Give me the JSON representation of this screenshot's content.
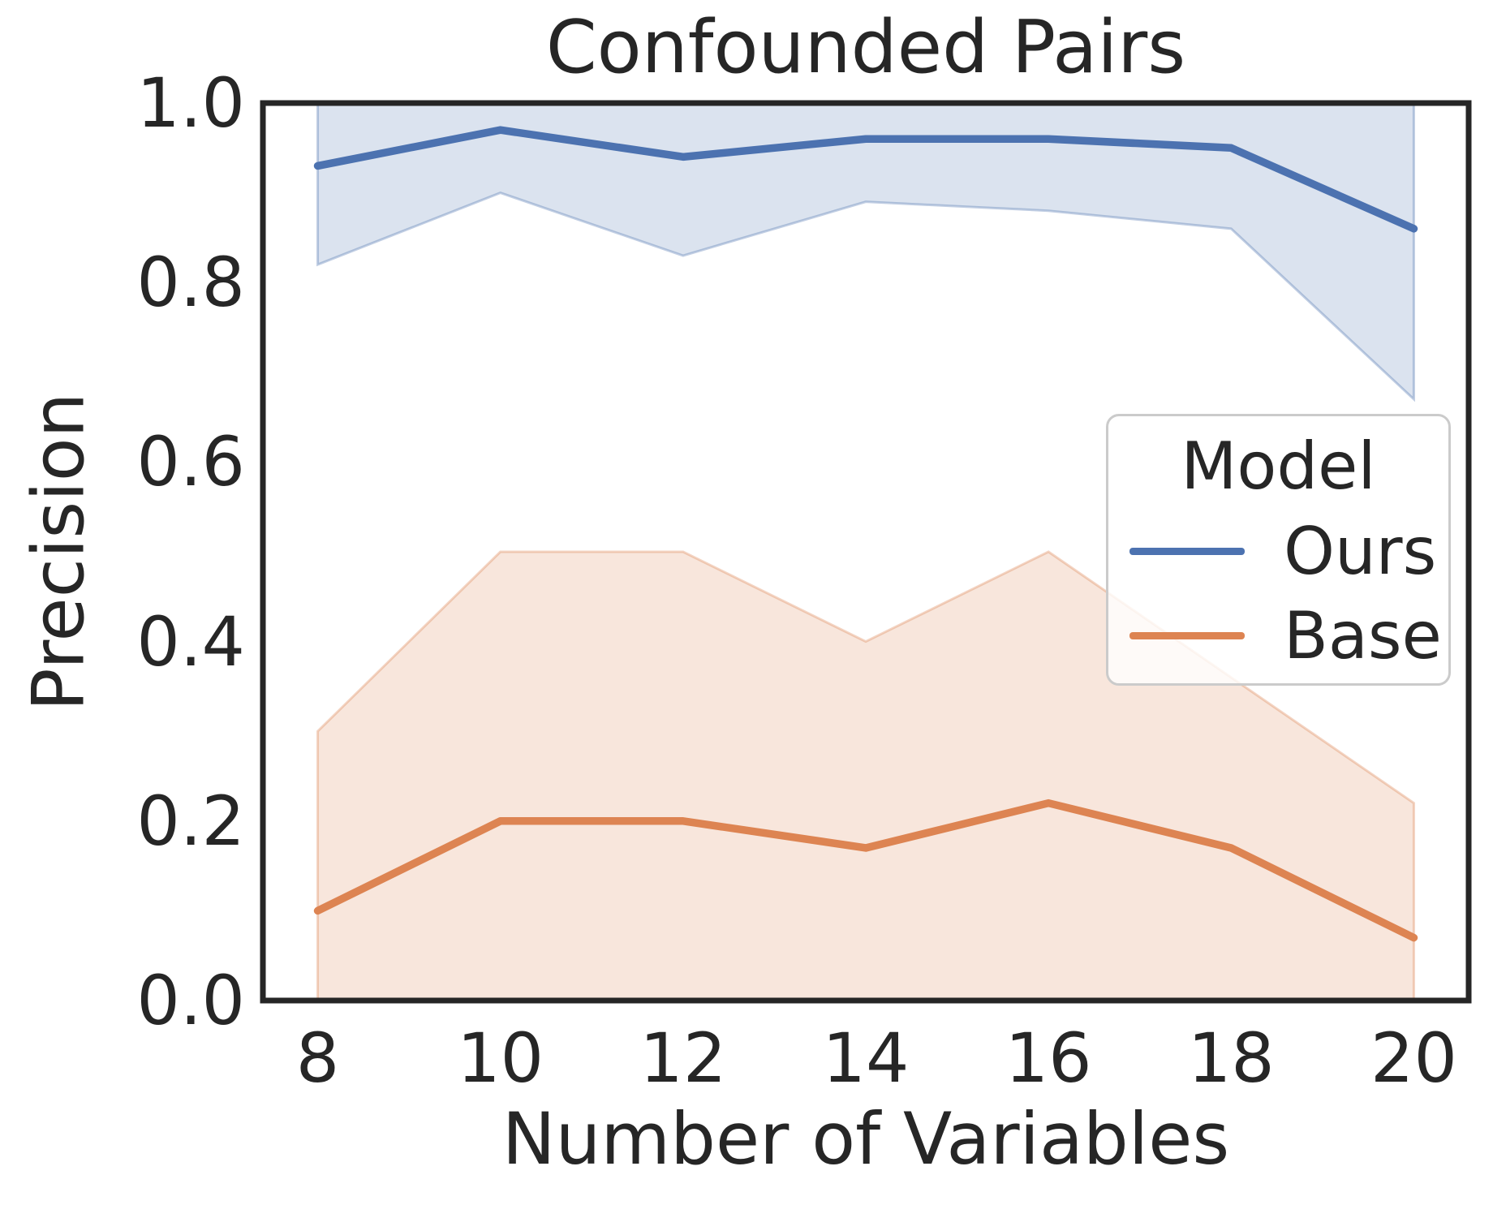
{
  "title": "Confounded Pairs",
  "axes": {
    "xlabel": "Number of Variables",
    "ylabel": "Precision"
  },
  "legend": {
    "title": "Model",
    "entries": [
      {
        "label": "Ours",
        "color": "#4c72b0"
      },
      {
        "label": "Base",
        "color": "#dd8452"
      }
    ]
  },
  "colors": {
    "ours_line": "#4c72b0",
    "base_line": "#dd8452",
    "axes_frame": "#262626",
    "text": "#262626",
    "legend_border": "#cbcbcb"
  },
  "chart_data": {
    "type": "line",
    "title": "Confounded Pairs",
    "xlabel": "Number of Variables",
    "ylabel": "Precision",
    "x": [
      8,
      10,
      12,
      14,
      16,
      18,
      20
    ],
    "xlim": [
      7.4,
      20.6
    ],
    "ylim": [
      0.0,
      1.0
    ],
    "y_ticks": [
      0.0,
      0.2,
      0.4,
      0.6,
      0.8,
      1.0
    ],
    "grid": false,
    "legend_position": "center right",
    "series": [
      {
        "name": "Ours",
        "color": "#4c72b0",
        "values": [
          0.93,
          0.97,
          0.94,
          0.96,
          0.96,
          0.95,
          0.86
        ],
        "band_lower": [
          0.82,
          0.9,
          0.83,
          0.89,
          0.88,
          0.86,
          0.67
        ],
        "band_upper": [
          1.0,
          1.0,
          1.0,
          1.0,
          1.0,
          1.0,
          1.0
        ]
      },
      {
        "name": "Base",
        "color": "#dd8452",
        "values": [
          0.1,
          0.2,
          0.2,
          0.17,
          0.22,
          0.17,
          0.07
        ],
        "band_lower": [
          0.0,
          0.0,
          0.0,
          0.0,
          0.0,
          0.0,
          0.0
        ],
        "band_upper": [
          0.3,
          0.5,
          0.5,
          0.4,
          0.5,
          0.36,
          0.22
        ]
      }
    ]
  }
}
